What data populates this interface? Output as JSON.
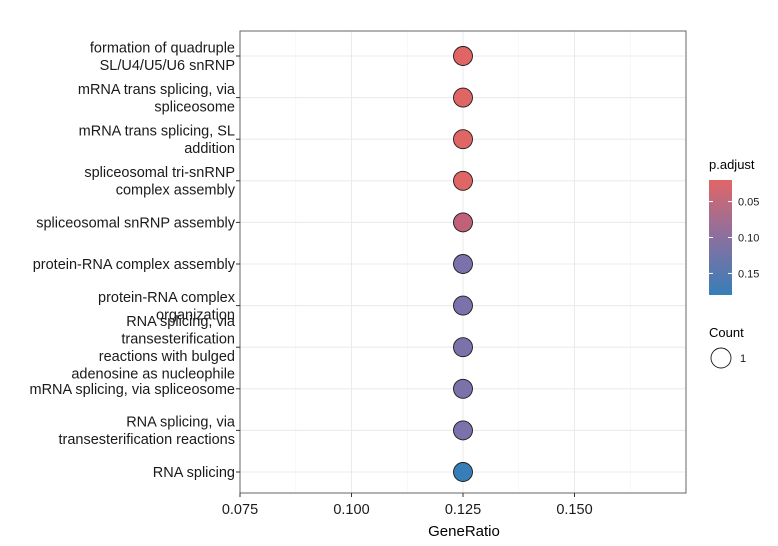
{
  "chart_data": {
    "type": "scatter",
    "title": "",
    "xlabel": "GeneRatio",
    "ylabel": "",
    "xlim": [
      0.075,
      0.175
    ],
    "x_ticks": [
      0.075,
      0.1,
      0.125,
      0.15
    ],
    "x_tick_labels": [
      "0.075",
      "0.100",
      "0.125",
      "0.150"
    ],
    "grid": true,
    "legend_position": "right",
    "categories": [
      "formation of quadruple\nSL/U4/U5/U6 snRNP",
      "mRNA trans splicing, via\nspliceosome",
      "mRNA trans splicing, SL\naddition",
      "spliceosomal tri-snRNP\ncomplex assembly",
      "spliceosomal snRNP assembly",
      "protein-RNA complex assembly",
      "protein-RNA complex\norganization",
      "RNA splicing, via\ntransesterification\nreactions with bulged\nadenosine as nucleophile",
      "mRNA splicing, via spliceosome",
      "RNA splicing, via\ntransesterification reactions",
      "RNA splicing"
    ],
    "points": [
      {
        "x": 0.125,
        "p_adjust": 0.03,
        "count": 1,
        "color": "#e06666"
      },
      {
        "x": 0.125,
        "p_adjust": 0.03,
        "count": 1,
        "color": "#e06666"
      },
      {
        "x": 0.125,
        "p_adjust": 0.03,
        "count": 1,
        "color": "#e06666"
      },
      {
        "x": 0.125,
        "p_adjust": 0.03,
        "count": 1,
        "color": "#e06666"
      },
      {
        "x": 0.125,
        "p_adjust": 0.08,
        "count": 1,
        "color": "#c0607a"
      },
      {
        "x": 0.125,
        "p_adjust": 0.14,
        "count": 1,
        "color": "#7b72ab"
      },
      {
        "x": 0.125,
        "p_adjust": 0.14,
        "count": 1,
        "color": "#7b72ab"
      },
      {
        "x": 0.125,
        "p_adjust": 0.14,
        "count": 1,
        "color": "#7b72ab"
      },
      {
        "x": 0.125,
        "p_adjust": 0.14,
        "count": 1,
        "color": "#7b72ab"
      },
      {
        "x": 0.125,
        "p_adjust": 0.14,
        "count": 1,
        "color": "#7b72ab"
      },
      {
        "x": 0.125,
        "p_adjust": 0.18,
        "count": 1,
        "color": "#377eb8"
      }
    ],
    "color_legend": {
      "title": "p.adjust",
      "range": [
        0.02,
        0.18
      ],
      "ticks": [
        0.05,
        0.1,
        0.15
      ],
      "tick_labels": [
        "0.05",
        "0.10",
        "0.15"
      ],
      "color_low": "#e06666",
      "color_mid": "#8a70a0",
      "color_high": "#377eb8"
    },
    "size_legend": {
      "title": "Count",
      "values": [
        1
      ],
      "labels": [
        "1"
      ]
    }
  }
}
